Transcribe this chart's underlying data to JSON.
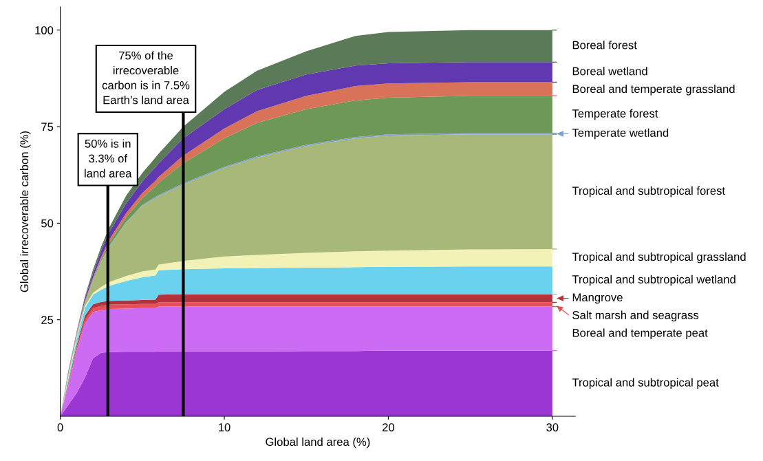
{
  "chart_data": {
    "type": "area",
    "stacked": true,
    "xlabel": "Global land area (%)",
    "ylabel": "Global irrecoverable carbon (%)",
    "x": [
      0,
      0.5,
      1,
      1.5,
      2,
      2.5,
      3,
      4,
      5,
      5.8,
      6,
      7.5,
      10,
      12,
      15,
      18,
      20,
      25,
      30
    ],
    "xlim": [
      0,
      31.4
    ],
    "xticks": [
      0,
      10,
      20,
      30
    ],
    "ylim": [
      0,
      106
    ],
    "yticks": [
      25,
      50,
      75,
      100
    ],
    "grid": false,
    "legend": "right",
    "series": [
      {
        "name": "Tropical and subtropical peat",
        "color": "#9b36d2",
        "values": [
          0,
          3,
          6,
          10,
          15,
          16.5,
          16.6,
          16.7,
          16.7,
          16.7,
          16.8,
          16.8,
          16.8,
          16.8,
          16.9,
          16.9,
          17,
          17,
          17
        ]
      },
      {
        "name": "Boreal and temperate peat",
        "color": "#cc6cf4",
        "values": [
          0,
          5,
          11,
          14,
          12,
          11,
          11.2,
          11.2,
          11.3,
          11.3,
          11.6,
          11.6,
          11.6,
          11.6,
          11.5,
          11.5,
          11.4,
          11.4,
          11.4
        ]
      },
      {
        "name": "Salt marsh and seagrass",
        "color": "#e5505c",
        "values": [
          0,
          0.5,
          0.8,
          1,
          1,
          1.1,
          1.1,
          1.1,
          1.1,
          1.1,
          1.1,
          1.1,
          1.1,
          1.1,
          1.1,
          1.1,
          1.1,
          1.1,
          1.1
        ]
      },
      {
        "name": "Mangrove",
        "color": "#b3323c",
        "values": [
          0,
          0.5,
          0.7,
          1,
          1,
          1,
          1,
          1,
          1,
          1.1,
          2,
          2.1,
          2.1,
          2.1,
          2.1,
          2.1,
          2.1,
          2.1,
          2.1
        ]
      },
      {
        "name": "Tropical and subtropical wetland",
        "color": "#6ad2ee",
        "values": [
          0,
          1,
          1.5,
          2,
          2.5,
          3.2,
          3.9,
          5,
          5.9,
          6.3,
          6.3,
          6.5,
          6.7,
          6.8,
          6.9,
          7,
          7.1,
          7.2,
          7.2
        ]
      },
      {
        "name": "Tropical and subtropical grassland",
        "color": "#f2f2b6",
        "values": [
          0,
          0.5,
          0.5,
          0.5,
          0.5,
          0.7,
          1,
          1.3,
          1.5,
          1.5,
          1.5,
          2.1,
          3.1,
          3.4,
          3.8,
          4.1,
          4.2,
          4.4,
          4.5
        ]
      },
      {
        "name": "Tropical and subtropical forest",
        "color": "#a7b878",
        "values": [
          0,
          0.5,
          0.5,
          0.5,
          3,
          6.5,
          9.2,
          13.7,
          17,
          18.5,
          17.7,
          19.8,
          22.9,
          25.2,
          27.7,
          29.3,
          29.8,
          29.8,
          29.7
        ]
      },
      {
        "name": "Temperate wetland",
        "color": "#7e9ed8",
        "values": [
          0,
          0.1,
          0.2,
          0.2,
          0.2,
          0.2,
          0.2,
          0.2,
          0.2,
          0.3,
          0.3,
          0.3,
          0.3,
          0.3,
          0.3,
          0.3,
          0.3,
          0.3,
          0.3
        ]
      },
      {
        "name": "Temperate forest",
        "color": "#6e9856",
        "values": [
          0,
          0.2,
          0.1,
          0.2,
          0.4,
          0.5,
          0.8,
          1.3,
          1.8,
          2.7,
          3.2,
          5.2,
          7.4,
          8.7,
          9.2,
          9.5,
          9.5,
          9.7,
          9.7
        ]
      },
      {
        "name": "Boreal and temperate grassland",
        "color": "#d8735a",
        "values": [
          0,
          0.2,
          0.3,
          0.4,
          0.4,
          0.6,
          0.8,
          1,
          1.3,
          1.5,
          1.5,
          2,
          2.5,
          3,
          3.5,
          3.7,
          3.7,
          3.5,
          3.5
        ]
      },
      {
        "name": "Boreal wetland",
        "color": "#6038b0",
        "values": [
          0,
          0.3,
          0.2,
          0.7,
          1,
          1.7,
          2,
          2.5,
          3,
          3.5,
          3.5,
          4.5,
          5,
          5.5,
          5.5,
          5.3,
          5.2,
          5.2,
          5.2
        ]
      },
      {
        "name": "Boreal forest",
        "color": "#5a7a58",
        "values": [
          0,
          0.2,
          0.2,
          0.5,
          1,
          1,
          1.2,
          2,
          2.2,
          2.5,
          2.5,
          3,
          4.5,
          5,
          6,
          7.7,
          8.1,
          8.3,
          8.3
        ]
      }
    ],
    "ref_lines": [
      {
        "axis": "x",
        "value": 2.9,
        "label": "50% is in\n3.3% of\nland area",
        "color": "#000000"
      },
      {
        "axis": "x",
        "value": 7.5,
        "label": "75% of the\nirrecoverable\ncarbon is in 7.5%\nEarth’s land area",
        "color": "#000000"
      }
    ]
  }
}
